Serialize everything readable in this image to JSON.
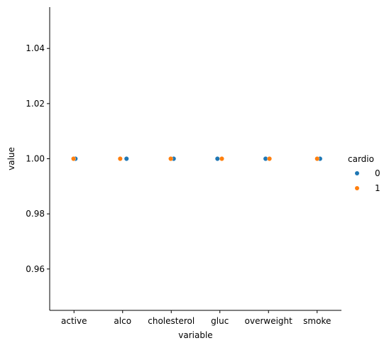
{
  "chart_data": {
    "type": "scatter",
    "kind": "stripplot",
    "title": "",
    "xlabel": "variable",
    "ylabel": "value",
    "categories": [
      "active",
      "alco",
      "cholesterol",
      "gluc",
      "overweight",
      "smoke"
    ],
    "ylim": [
      0.945,
      1.055
    ],
    "yticks": [
      0.96,
      0.98,
      1.0,
      1.02,
      1.04
    ],
    "ytick_labels": [
      "0.96",
      "0.98",
      "1.00",
      "1.02",
      "1.04"
    ],
    "legend": {
      "title": "cardio",
      "placement": "right",
      "entries": [
        {
          "label": "0",
          "color": "#1f77b4"
        },
        {
          "label": "1",
          "color": "#ff7f0e"
        }
      ]
    },
    "series": [
      {
        "name": "0",
        "color": "#1f77b4",
        "points": [
          {
            "category": "active",
            "value": 1.0,
            "jitter": 0.03
          },
          {
            "category": "alco",
            "value": 1.0,
            "jitter": 0.08
          },
          {
            "category": "cholesterol",
            "value": 1.0,
            "jitter": 0.05
          },
          {
            "category": "gluc",
            "value": 1.0,
            "jitter": -0.05
          },
          {
            "category": "overweight",
            "value": 1.0,
            "jitter": -0.06
          },
          {
            "category": "smoke",
            "value": 1.0,
            "jitter": 0.06
          }
        ]
      },
      {
        "name": "1",
        "color": "#ff7f0e",
        "points": [
          {
            "category": "active",
            "value": 1.0,
            "jitter": -0.01
          },
          {
            "category": "alco",
            "value": 1.0,
            "jitter": -0.05
          },
          {
            "category": "cholesterol",
            "value": 1.0,
            "jitter": -0.01
          },
          {
            "category": "gluc",
            "value": 1.0,
            "jitter": 0.04
          },
          {
            "category": "overweight",
            "value": 1.0,
            "jitter": 0.02
          },
          {
            "category": "smoke",
            "value": 1.0,
            "jitter": 0.0
          }
        ]
      }
    ]
  }
}
